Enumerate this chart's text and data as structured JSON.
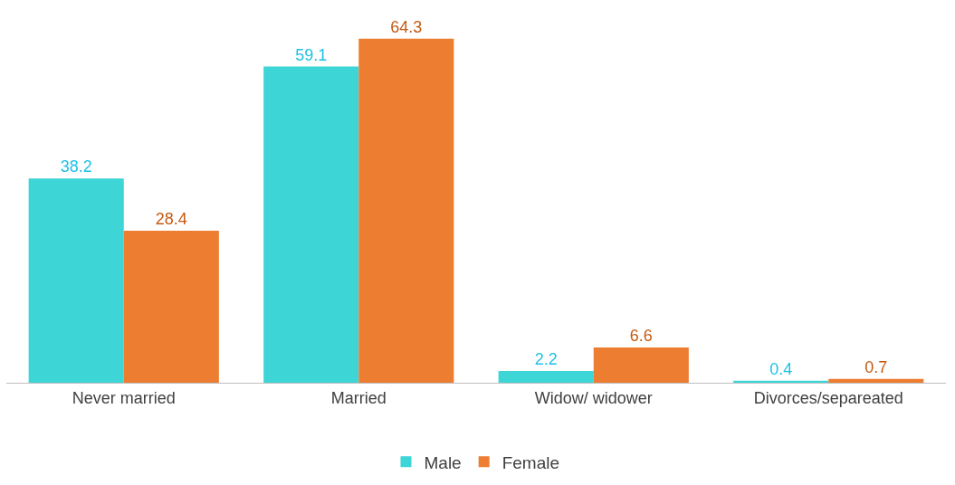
{
  "chart_data": {
    "type": "bar",
    "categories": [
      "Never married",
      "Married",
      "Widow/ widower",
      "Divorces/separeated"
    ],
    "series": [
      {
        "name": "Male",
        "color": "#3dd5d6",
        "values": [
          38.2,
          59.1,
          2.2,
          0.4
        ]
      },
      {
        "name": "Female",
        "color": "#ed7d31",
        "values": [
          28.4,
          64.3,
          6.6,
          0.7
        ]
      }
    ],
    "data_labels": true,
    "legend": "bottom"
  }
}
